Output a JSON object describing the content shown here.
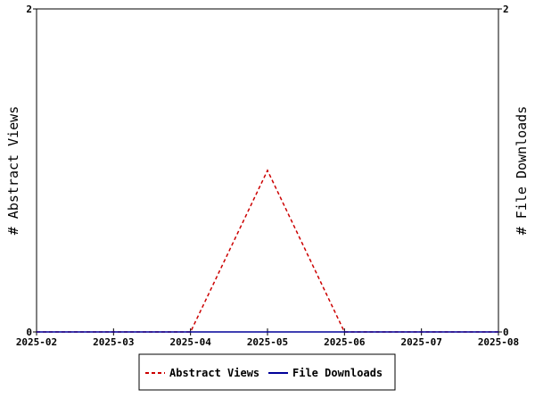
{
  "chart_data": {
    "type": "line",
    "x": [
      "2025-02",
      "2025-03",
      "2025-04",
      "2025-05",
      "2025-06",
      "2025-07",
      "2025-08"
    ],
    "series": [
      {
        "name": "Abstract Views",
        "values": [
          0,
          0,
          0,
          1,
          0,
          0,
          0
        ],
        "color": "#cc0000",
        "style": "dashed",
        "axis": "left"
      },
      {
        "name": "File Downloads",
        "values": [
          0,
          0,
          0,
          0,
          0,
          0,
          0
        ],
        "color": "#000099",
        "style": "solid",
        "axis": "right"
      }
    ],
    "ylabel_left": "# Abstract Views",
    "ylabel_right": "# File Downloads",
    "ylim_left": [
      0,
      2
    ],
    "ylim_right": [
      0,
      2
    ],
    "yticks_left": [
      "0",
      "2"
    ],
    "yticks_right": [
      "0",
      "2"
    ],
    "grid": false,
    "legend_placement": "bottom-center"
  }
}
